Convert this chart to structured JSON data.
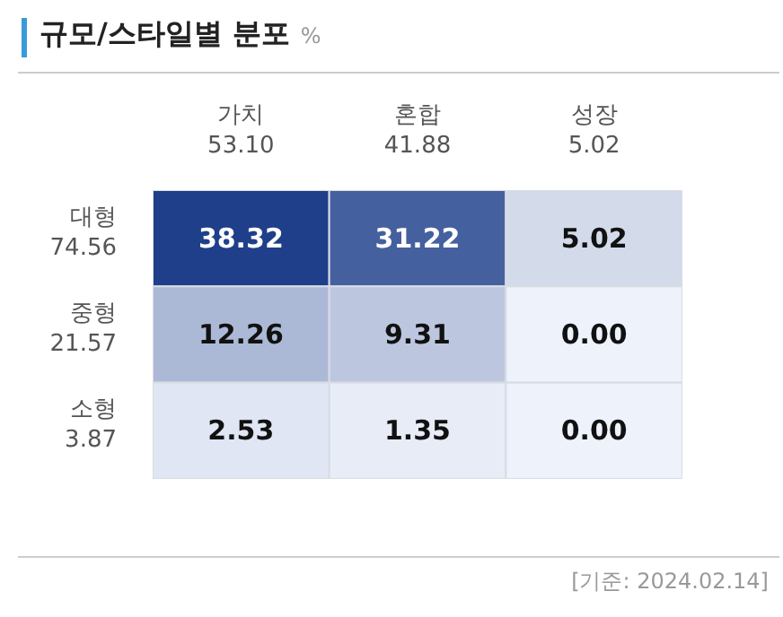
{
  "chart_data": {
    "type": "heatmap",
    "title": "규모/스타일별 분포",
    "subtitle": "%",
    "categories": [
      "가치 53.10",
      "혼합 41.88",
      "성장 5.02"
    ],
    "y_categories": [
      "대형 74.56",
      "중형 21.57",
      "소형 3.87"
    ],
    "cells": [
      [
        38.32,
        31.22,
        5.02
      ],
      [
        12.26,
        9.31,
        0.0
      ],
      [
        2.53,
        1.35,
        0.0
      ]
    ],
    "cell_labels": [
      [
        "38.32",
        "31.22",
        "5.02"
      ],
      [
        "12.26",
        "9.31",
        "0.00"
      ],
      [
        "2.53",
        "1.35",
        "0.00"
      ]
    ],
    "color": "#1f3f8a",
    "annotations": [
      "[기준: 2024.02.14]"
    ]
  }
}
